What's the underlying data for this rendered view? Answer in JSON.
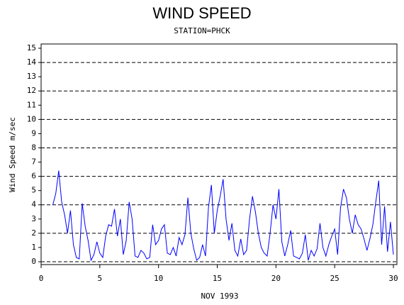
{
  "chart_data": {
    "type": "line",
    "title": "WIND SPEED",
    "subtitle": "STATION=PHCK",
    "x_label": "NOV 1993",
    "y_label": "Wind Speed m/sec",
    "color": "#0000ff",
    "xlim": [
      0,
      30.3
    ],
    "ylim": [
      -0.2,
      15.3
    ],
    "xticks": [
      0,
      5,
      10,
      15,
      20,
      25,
      30
    ],
    "yticks": [
      0,
      1,
      2,
      3,
      4,
      5,
      6,
      7,
      8,
      9,
      10,
      11,
      12,
      13,
      14,
      15
    ],
    "grid_lines": [
      0,
      2,
      4,
      6,
      8,
      10,
      12,
      14
    ],
    "x": [
      1,
      1.25,
      1.5,
      1.75,
      2,
      2.25,
      2.5,
      2.75,
      3,
      3.25,
      3.5,
      3.75,
      4,
      4.25,
      4.5,
      4.75,
      5,
      5.25,
      5.5,
      5.75,
      6,
      6.25,
      6.5,
      6.75,
      7,
      7.25,
      7.5,
      7.75,
      8,
      8.25,
      8.5,
      8.75,
      9,
      9.25,
      9.5,
      9.75,
      10,
      10.25,
      10.5,
      10.75,
      11,
      11.25,
      11.5,
      11.75,
      12,
      12.25,
      12.5,
      12.75,
      13,
      13.25,
      13.5,
      13.75,
      14,
      14.25,
      14.5,
      14.75,
      15,
      15.25,
      15.5,
      15.75,
      16,
      16.25,
      16.5,
      16.75,
      17,
      17.25,
      17.5,
      17.75,
      18,
      18.25,
      18.5,
      18.75,
      19,
      19.25,
      19.5,
      19.75,
      20,
      20.25,
      20.5,
      20.75,
      21,
      21.25,
      21.5,
      21.75,
      22,
      22.25,
      22.5,
      22.75,
      23,
      23.25,
      23.5,
      23.75,
      24,
      24.25,
      24.5,
      24.75,
      25,
      25.25,
      25.5,
      25.75,
      26,
      26.25,
      26.5,
      26.75,
      27,
      27.25,
      27.5,
      27.75,
      28,
      28.25,
      28.5,
      28.75,
      29,
      29.25,
      29.5,
      29.75,
      30
    ],
    "values": [
      4.0,
      4.8,
      6.4,
      4.2,
      3.3,
      2.0,
      3.6,
      1.2,
      0.3,
      0.2,
      4.1,
      2.5,
      1.5,
      0.1,
      0.5,
      1.4,
      0.6,
      0.3,
      1.8,
      2.6,
      2.5,
      3.7,
      1.8,
      3.0,
      0.5,
      1.5,
      4.2,
      3.0,
      0.4,
      0.3,
      0.8,
      0.6,
      0.2,
      0.3,
      2.6,
      1.2,
      1.5,
      2.3,
      2.6,
      0.6,
      0.5,
      1.0,
      0.4,
      1.7,
      1.2,
      1.9,
      4.5,
      2.0,
      0.9,
      0.1,
      0.3,
      1.2,
      0.4,
      3.8,
      5.4,
      2.0,
      3.6,
      4.6,
      5.8,
      3.0,
      1.5,
      2.7,
      0.8,
      0.4,
      1.6,
      0.5,
      0.8,
      3.0,
      4.6,
      3.5,
      2.0,
      1.0,
      0.6,
      0.4,
      2.0,
      4.0,
      3.0,
      5.1,
      1.4,
      0.4,
      1.2,
      2.2,
      0.4,
      0.3,
      0.2,
      0.6,
      1.9,
      0.1,
      0.8,
      0.4,
      0.9,
      2.7,
      1.0,
      0.4,
      1.2,
      1.8,
      2.3,
      0.5,
      3.8,
      5.1,
      4.5,
      3.0,
      2.0,
      3.3,
      2.6,
      2.3,
      1.6,
      0.8,
      1.6,
      2.6,
      4.2,
      5.7,
      1.2,
      3.9,
      0.7,
      2.8,
      0.5
    ]
  }
}
